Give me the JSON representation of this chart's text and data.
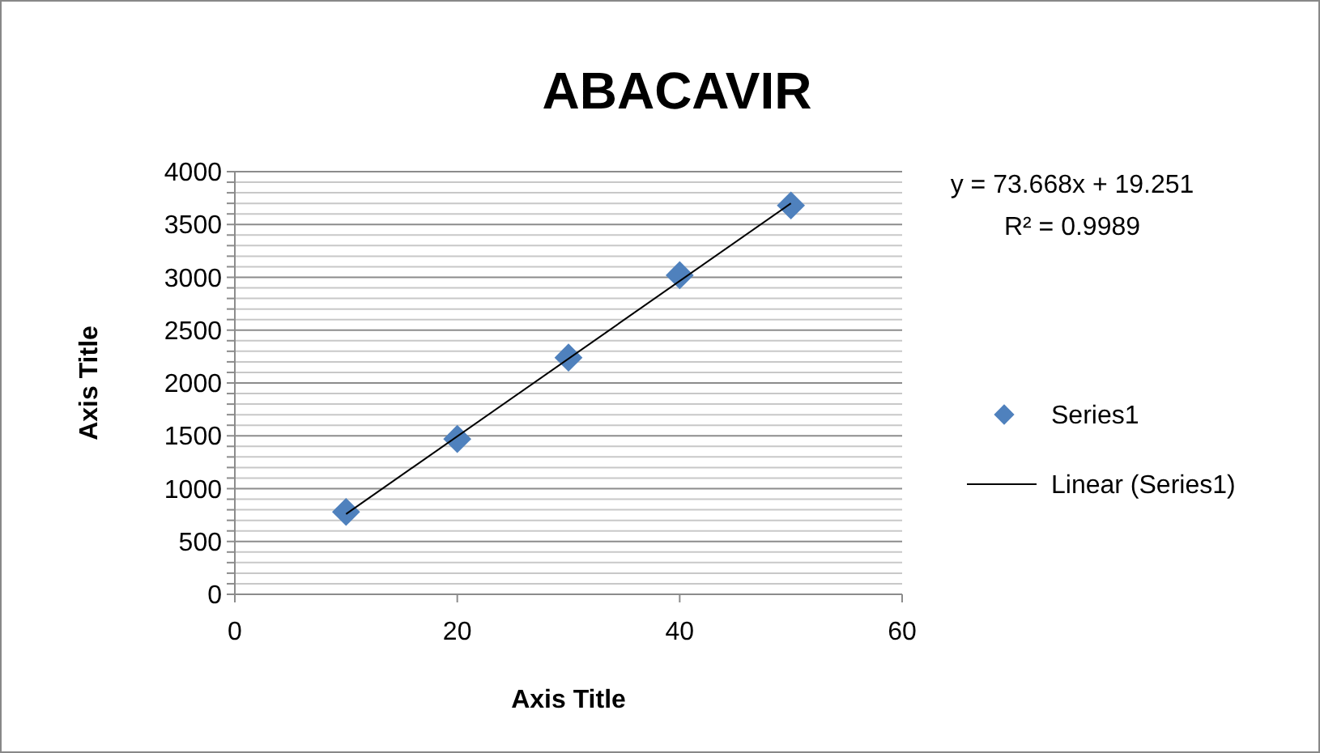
{
  "chart_data": {
    "type": "scatter",
    "title": "ABACAVIR",
    "xlabel": "Axis Title",
    "ylabel": "Axis Title",
    "xlim": [
      0,
      60
    ],
    "xticks": [
      0,
      20,
      40,
      60
    ],
    "ylim": [
      0,
      4000
    ],
    "yticks": [
      0,
      {
        "value": 100,
        "label": null
      },
      {
        "value": 200,
        "label": null
      },
      {
        "value": 300,
        "label": null
      },
      {
        "value": 400,
        "label": null
      },
      500,
      {
        "value": 600,
        "label": null
      },
      {
        "value": 700,
        "label": null
      },
      {
        "value": 800,
        "label": null
      },
      {
        "value": 900,
        "label": null
      },
      1000,
      {
        "value": 1100,
        "label": null
      },
      {
        "value": 1200,
        "label": null
      },
      {
        "value": 1300,
        "label": null
      },
      {
        "value": 1400,
        "label": null
      },
      1500,
      {
        "value": 1600,
        "label": null
      },
      {
        "value": 1700,
        "label": null
      },
      {
        "value": 1800,
        "label": null
      },
      {
        "value": 1900,
        "label": null
      },
      2000,
      {
        "value": 2100,
        "label": null
      },
      {
        "value": 2200,
        "label": null
      },
      {
        "value": 2300,
        "label": null
      },
      {
        "value": 2400,
        "label": null
      },
      2500,
      {
        "value": 2600,
        "label": null
      },
      {
        "value": 2700,
        "label": null
      },
      {
        "value": 2800,
        "label": null
      },
      {
        "value": 2900,
        "label": null
      },
      3000,
      {
        "value": 3100,
        "label": null
      },
      {
        "value": 3200,
        "label": null
      },
      {
        "value": 3300,
        "label": null
      },
      {
        "value": 3400,
        "label": null
      },
      3500,
      {
        "value": 3600,
        "label": null
      },
      {
        "value": 3700,
        "label": null
      },
      {
        "value": 3800,
        "label": null
      },
      {
        "value": 3900,
        "label": null
      },
      4000
    ],
    "grid": "y",
    "legend": "right",
    "series": [
      {
        "name": "Series1",
        "color": "#4f81bd",
        "marker": "diamond",
        "x": [
          10,
          20,
          30,
          40,
          50
        ],
        "values": [
          780,
          1470,
          2240,
          3020,
          3680
        ]
      },
      {
        "name": "Linear (Series1)",
        "type": "line",
        "color": "#000000",
        "marker": "none",
        "x": [
          10,
          50
        ],
        "values": [
          760,
          3700
        ]
      }
    ],
    "annotations": [
      "y = 73.668x + 19.251",
      "R² = 0.9989"
    ]
  }
}
